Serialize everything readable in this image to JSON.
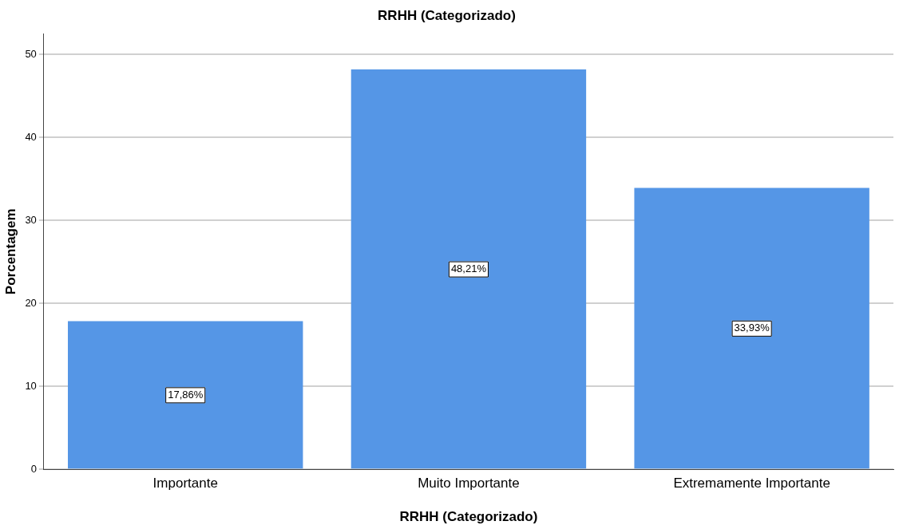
{
  "chart_data": {
    "type": "bar",
    "title": "RRHH (Categorizado)",
    "xlabel": "RRHH (Categorizado)",
    "ylabel": "Porcentagem",
    "categories": [
      "Importante",
      "Muito Importante",
      "Extremamente Importante"
    ],
    "values": [
      17.86,
      48.21,
      33.93
    ],
    "value_labels": [
      "17,86%",
      "48,21%",
      "33,93%"
    ],
    "color": "#5596e6",
    "ylim": [
      0,
      52.5
    ],
    "yticks": [
      0,
      10,
      20,
      30,
      40,
      50
    ],
    "grid": "y"
  }
}
